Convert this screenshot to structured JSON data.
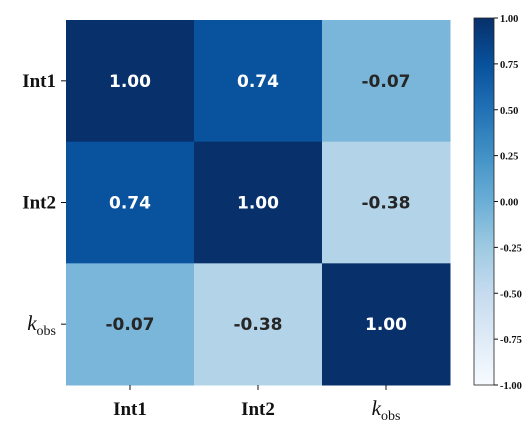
{
  "chart_data": {
    "type": "heatmap",
    "x_labels": [
      {
        "main": "Int1",
        "sub": "",
        "italic": false
      },
      {
        "main": "Int2",
        "sub": "",
        "italic": false
      },
      {
        "main": "k",
        "sub": "obs",
        "italic": true
      }
    ],
    "y_labels": [
      {
        "main": "Int1",
        "sub": "",
        "italic": false
      },
      {
        "main": "Int2",
        "sub": "",
        "italic": false
      },
      {
        "main": "k",
        "sub": "obs",
        "italic": true
      }
    ],
    "values": [
      [
        1.0,
        0.74,
        -0.07
      ],
      [
        0.74,
        1.0,
        -0.38
      ],
      [
        -0.07,
        -0.38,
        1.0
      ]
    ],
    "value_labels": [
      [
        "1.00",
        "0.74",
        "-0.07"
      ],
      [
        "0.74",
        "1.00",
        "-0.38"
      ],
      [
        "-0.07",
        "-0.38",
        "1.00"
      ]
    ],
    "colormap": "Blues",
    "vmin": -1.0,
    "vmax": 1.0,
    "colorbar_ticks": [
      "1.00",
      "0.75",
      "0.50",
      "0.25",
      "0.00",
      "-0.25",
      "-0.50",
      "-0.75",
      "-1.00"
    ],
    "colorbar_position": "right",
    "grid": false
  },
  "colors": {
    "light_text": "#ffffff",
    "dark_text": "#262626",
    "cmap_stops": [
      "#f7fbff",
      "#deebf7",
      "#c6dbef",
      "#9ecae1",
      "#6baed6",
      "#4292c6",
      "#2171b5",
      "#08519c",
      "#08306b"
    ]
  }
}
